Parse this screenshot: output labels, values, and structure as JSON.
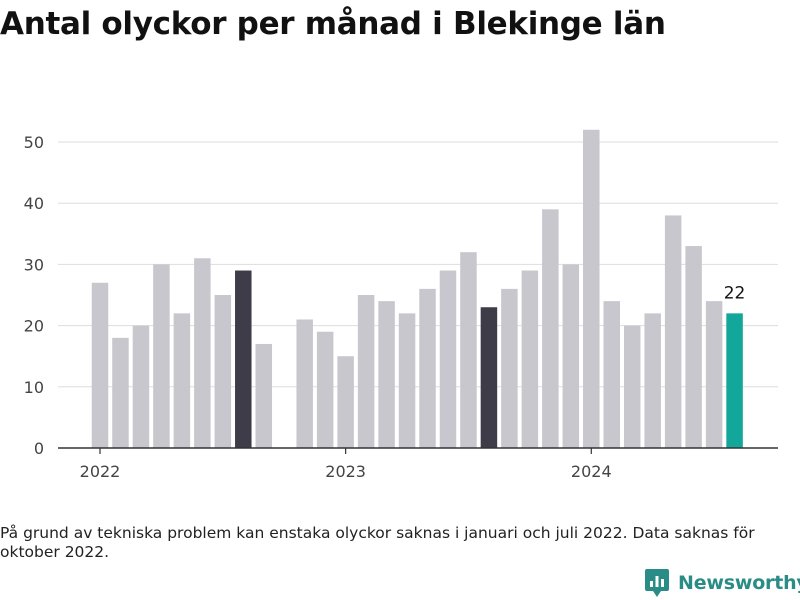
{
  "title": "Antal olyckor per månad i Blekinge län",
  "footnote": "På grund av tekniska problem kan enstaka olyckor saknas i januari och juli 2022. Data saknas för oktober 2022.",
  "brand": {
    "name": "Newsworthy",
    "icon": "newsworthy-logo-icon",
    "color": "#2a8c86"
  },
  "colors": {
    "default": "#c8c7ce",
    "highlight_dark": "#3d3c48",
    "latest": "#12a79a",
    "grid": "#dddddd",
    "axis": "#333333"
  },
  "chart_data": {
    "type": "bar",
    "title": "Antal olyckor per månad i Blekinge län",
    "xlabel": "",
    "ylabel": "",
    "ylim": [
      0,
      52
    ],
    "yticks": [
      0,
      10,
      20,
      30,
      40,
      50
    ],
    "grid": true,
    "x_tick_labels": [
      {
        "label": "2022",
        "at": "2022-01"
      },
      {
        "label": "2023",
        "at": "2023-01"
      },
      {
        "label": "2024",
        "at": "2024-01"
      }
    ],
    "categories": [
      "2022-01",
      "2022-02",
      "2022-03",
      "2022-04",
      "2022-05",
      "2022-06",
      "2022-07",
      "2022-08",
      "2022-09",
      "2022-10",
      "2022-11",
      "2022-12",
      "2023-01",
      "2023-02",
      "2023-03",
      "2023-04",
      "2023-05",
      "2023-06",
      "2023-07",
      "2023-08",
      "2023-09",
      "2023-10",
      "2023-11",
      "2023-12",
      "2024-01",
      "2024-02",
      "2024-03",
      "2024-04",
      "2024-05",
      "2024-06",
      "2024-07",
      "2024-08"
    ],
    "values": [
      27,
      18,
      20,
      30,
      22,
      31,
      25,
      29,
      17,
      null,
      21,
      19,
      15,
      25,
      24,
      22,
      26,
      29,
      32,
      23,
      26,
      29,
      39,
      30,
      52,
      24,
      20,
      22,
      38,
      33,
      24,
      22
    ],
    "highlighted": {
      "2022-08": "highlight_dark",
      "2023-08": "highlight_dark",
      "2024-08": "latest"
    },
    "data_labels": [
      {
        "category": "2024-08",
        "text": "22"
      }
    ]
  }
}
